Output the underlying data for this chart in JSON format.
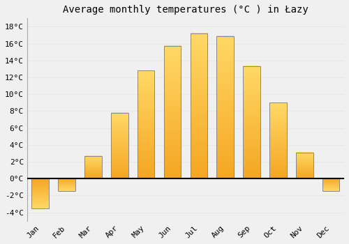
{
  "title": "Average monthly temperatures (°C ) in Łazy",
  "months": [
    "Jan",
    "Feb",
    "Mar",
    "Apr",
    "May",
    "Jun",
    "Jul",
    "Aug",
    "Sep",
    "Oct",
    "Nov",
    "Dec"
  ],
  "values": [
    -3.5,
    -1.5,
    2.7,
    7.8,
    12.8,
    15.7,
    17.2,
    16.9,
    13.3,
    9.0,
    3.1,
    -1.5
  ],
  "bar_color_bottom": "#F5A623",
  "bar_color_top": "#FFD966",
  "bar_edge_color": "#888888",
  "background_color": "#f0f0f0",
  "grid_color": "#e8e8e8",
  "ylim": [
    -5,
    19
  ],
  "yticks": [
    -4,
    -2,
    0,
    2,
    4,
    6,
    8,
    10,
    12,
    14,
    16,
    18
  ],
  "zero_line_color": "#000000",
  "title_fontsize": 10,
  "tick_fontsize": 8,
  "font_family": "monospace",
  "bar_width": 0.65
}
